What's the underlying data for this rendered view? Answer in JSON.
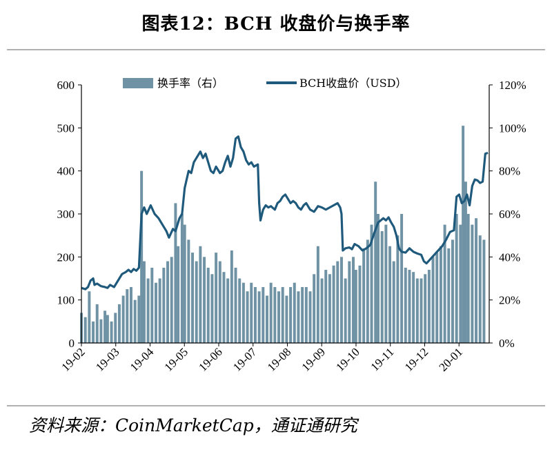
{
  "title": "图表12：BCH 收盘价与换手率",
  "source": "资料来源：CoinMarketCap，通证通研究",
  "colors": {
    "bar": "#6f93a5",
    "line": "#1f5a7d",
    "axis": "#000000",
    "rule": "#b0b0b0"
  },
  "chart_data": {
    "type": "bar+line",
    "legend": {
      "items": [
        "换手率（右）",
        "BCH收盘价（USD）"
      ],
      "placement": "top"
    },
    "x_ticks": [
      "19-02",
      "19-03",
      "19-04",
      "19-05",
      "19-06",
      "19-07",
      "19-08",
      "19-09",
      "19-10",
      "19-11",
      "19-12",
      "20-01"
    ],
    "y_left": {
      "ticks": [
        "0",
        "100",
        "200",
        "300",
        "400",
        "500",
        "600"
      ],
      "range": [
        0,
        600
      ]
    },
    "y_right": {
      "ticks": [
        "0%",
        "20%",
        "40%",
        "60%",
        "80%",
        "100%",
        "120%"
      ],
      "range": [
        0,
        120
      ]
    },
    "series": [
      {
        "name": "换手率（右）",
        "kind": "bar",
        "axis": "right",
        "unit": "%",
        "points": [
          [
            0,
            14
          ],
          [
            3,
            12
          ],
          [
            6,
            24
          ],
          [
            9,
            10
          ],
          [
            12,
            18
          ],
          [
            15,
            11
          ],
          [
            18,
            15
          ],
          [
            20,
            13
          ],
          [
            23,
            10
          ],
          [
            26,
            14
          ],
          [
            29,
            18
          ],
          [
            32,
            22
          ],
          [
            35,
            25
          ],
          [
            38,
            26
          ],
          [
            41,
            20
          ],
          [
            44,
            22
          ],
          [
            46,
            80
          ],
          [
            48,
            38
          ],
          [
            51,
            30
          ],
          [
            54,
            35
          ],
          [
            57,
            28
          ],
          [
            60,
            30
          ],
          [
            63,
            35
          ],
          [
            66,
            38
          ],
          [
            69,
            40
          ],
          [
            72,
            65
          ],
          [
            74,
            45
          ],
          [
            77,
            60
          ],
          [
            79,
            55
          ],
          [
            82,
            48
          ],
          [
            85,
            42
          ],
          [
            88,
            38
          ],
          [
            91,
            45
          ],
          [
            94,
            40
          ],
          [
            97,
            35
          ],
          [
            100,
            32
          ],
          [
            103,
            42
          ],
          [
            106,
            38
          ],
          [
            109,
            33
          ],
          [
            112,
            30
          ],
          [
            115,
            43
          ],
          [
            118,
            35
          ],
          [
            121,
            30
          ],
          [
            124,
            28
          ],
          [
            127,
            24
          ],
          [
            130,
            28
          ],
          [
            133,
            26
          ],
          [
            136,
            24
          ],
          [
            139,
            26
          ],
          [
            142,
            22
          ],
          [
            145,
            28
          ],
          [
            148,
            26
          ],
          [
            151,
            24
          ],
          [
            154,
            26
          ],
          [
            157,
            22
          ],
          [
            160,
            26
          ],
          [
            163,
            28
          ],
          [
            166,
            24
          ],
          [
            169,
            26
          ],
          [
            172,
            26
          ],
          [
            175,
            24
          ],
          [
            178,
            32
          ],
          [
            181,
            45
          ],
          [
            184,
            30
          ],
          [
            187,
            34
          ],
          [
            190,
            32
          ],
          [
            193,
            36
          ],
          [
            196,
            38
          ],
          [
            199,
            40
          ],
          [
            202,
            30
          ],
          [
            205,
            38
          ],
          [
            208,
            40
          ],
          [
            210,
            34
          ],
          [
            213,
            36
          ],
          [
            216,
            44
          ],
          [
            219,
            48
          ],
          [
            222,
            55
          ],
          [
            225,
            75
          ],
          [
            227,
            60
          ],
          [
            230,
            52
          ],
          [
            233,
            55
          ],
          [
            236,
            45
          ],
          [
            239,
            38
          ],
          [
            242,
            50
          ],
          [
            245,
            60
          ],
          [
            248,
            35
          ],
          [
            251,
            34
          ],
          [
            254,
            33
          ],
          [
            257,
            30
          ],
          [
            260,
            30
          ],
          [
            263,
            32
          ],
          [
            266,
            34
          ],
          [
            269,
            40
          ],
          [
            272,
            42
          ],
          [
            275,
            45
          ],
          [
            278,
            55
          ],
          [
            281,
            44
          ],
          [
            284,
            48
          ],
          [
            287,
            60
          ],
          [
            290,
            55
          ],
          [
            292,
            101
          ],
          [
            294,
            75
          ],
          [
            296,
            60
          ],
          [
            299,
            55
          ],
          [
            302,
            58
          ],
          [
            305,
            50
          ],
          [
            308,
            48
          ]
        ]
      },
      {
        "name": "BCH收盘价（USD）",
        "kind": "line",
        "axis": "left",
        "unit": "USD",
        "points": [
          [
            0,
            128
          ],
          [
            3,
            125
          ],
          [
            5,
            130
          ],
          [
            7,
            145
          ],
          [
            9,
            150
          ],
          [
            10,
            135
          ],
          [
            12,
            138
          ],
          [
            15,
            132
          ],
          [
            18,
            130
          ],
          [
            20,
            128
          ],
          [
            22,
            135
          ],
          [
            25,
            130
          ],
          [
            28,
            145
          ],
          [
            31,
            160
          ],
          [
            34,
            165
          ],
          [
            36,
            170
          ],
          [
            38,
            165
          ],
          [
            40,
            172
          ],
          [
            42,
            168
          ],
          [
            44,
            175
          ],
          [
            46,
            300
          ],
          [
            48,
            315
          ],
          [
            50,
            300
          ],
          [
            53,
            320
          ],
          [
            56,
            300
          ],
          [
            59,
            290
          ],
          [
            62,
            275
          ],
          [
            65,
            260
          ],
          [
            67,
            245
          ],
          [
            70,
            265
          ],
          [
            72,
            260
          ],
          [
            75,
            290
          ],
          [
            77,
            300
          ],
          [
            79,
            360
          ],
          [
            82,
            400
          ],
          [
            84,
            395
          ],
          [
            86,
            420
          ],
          [
            88,
            430
          ],
          [
            91,
            445
          ],
          [
            93,
            430
          ],
          [
            95,
            440
          ],
          [
            97,
            420
          ],
          [
            99,
            400
          ],
          [
            101,
            395
          ],
          [
            103,
            410
          ],
          [
            106,
            395
          ],
          [
            108,
            400
          ],
          [
            110,
            420
          ],
          [
            112,
            435
          ],
          [
            114,
            410
          ],
          [
            116,
            430
          ],
          [
            118,
            475
          ],
          [
            120,
            480
          ],
          [
            122,
            455
          ],
          [
            124,
            445
          ],
          [
            126,
            425
          ],
          [
            128,
            415
          ],
          [
            130,
            420
          ],
          [
            132,
            410
          ],
          [
            135,
            415
          ],
          [
            136,
            325
          ],
          [
            137,
            285
          ],
          [
            139,
            310
          ],
          [
            141,
            320
          ],
          [
            143,
            315
          ],
          [
            145,
            318
          ],
          [
            148,
            310
          ],
          [
            150,
            325
          ],
          [
            152,
            330
          ],
          [
            154,
            340
          ],
          [
            156,
            345
          ],
          [
            158,
            335
          ],
          [
            160,
            325
          ],
          [
            162,
            330
          ],
          [
            164,
            325
          ],
          [
            166,
            315
          ],
          [
            168,
            310
          ],
          [
            170,
            320
          ],
          [
            172,
            325
          ],
          [
            175,
            310
          ],
          [
            178,
            305
          ],
          [
            181,
            318
          ],
          [
            184,
            315
          ],
          [
            187,
            310
          ],
          [
            190,
            315
          ],
          [
            193,
            320
          ],
          [
            196,
            325
          ],
          [
            198,
            315
          ],
          [
            199,
            300
          ],
          [
            200,
            215
          ],
          [
            202,
            220
          ],
          [
            205,
            222
          ],
          [
            207,
            218
          ],
          [
            209,
            230
          ],
          [
            212,
            225
          ],
          [
            215,
            215
          ],
          [
            218,
            220
          ],
          [
            221,
            228
          ],
          [
            224,
            255
          ],
          [
            227,
            280
          ],
          [
            229,
            285
          ],
          [
            231,
            290
          ],
          [
            233,
            285
          ],
          [
            235,
            292
          ],
          [
            237,
            280
          ],
          [
            239,
            270
          ],
          [
            241,
            250
          ],
          [
            243,
            220
          ],
          [
            245,
            212
          ],
          [
            248,
            210
          ],
          [
            251,
            220
          ],
          [
            254,
            212
          ],
          [
            257,
            208
          ],
          [
            260,
            205
          ],
          [
            262,
            190
          ],
          [
            264,
            185
          ],
          [
            267,
            195
          ],
          [
            270,
            205
          ],
          [
            273,
            215
          ],
          [
            276,
            225
          ],
          [
            279,
            240
          ],
          [
            282,
            258
          ],
          [
            285,
            262
          ],
          [
            287,
            340
          ],
          [
            289,
            345
          ],
          [
            291,
            325
          ],
          [
            293,
            330
          ],
          [
            295,
            345
          ],
          [
            297,
            320
          ],
          [
            299,
            365
          ],
          [
            301,
            380
          ],
          [
            303,
            378
          ],
          [
            305,
            372
          ],
          [
            307,
            375
          ],
          [
            309,
            440
          ],
          [
            311,
            442
          ]
        ]
      }
    ],
    "x_range": [
      0,
      312
    ]
  }
}
